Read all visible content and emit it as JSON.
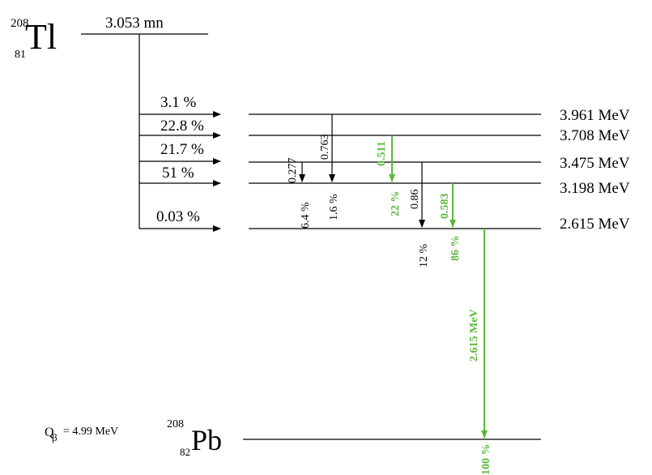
{
  "parent": {
    "mass": "208",
    "atomic_number": "81",
    "symbol": "Tl",
    "half_life": "3.053 mn"
  },
  "daughter": {
    "mass": "208",
    "atomic_number": "82",
    "symbol": "Pb"
  },
  "q_value": {
    "prefix": "Q",
    "subscript": "β",
    "value": "= 4.99 MeV"
  },
  "levels": [
    {
      "energy": "3.961 MeV"
    },
    {
      "energy": "3.708 MeV"
    },
    {
      "energy": "3.475 MeV"
    },
    {
      "energy": "3.198 MeV"
    },
    {
      "energy": "2.615 MeV"
    }
  ],
  "beta_branches": [
    {
      "intensity": "3.1 %"
    },
    {
      "intensity": "22.8 %"
    },
    {
      "intensity": "21.7 %"
    },
    {
      "intensity": "51 %"
    },
    {
      "intensity": "0.03 %"
    }
  ],
  "gammas": [
    {
      "energy": "0.277",
      "intensity": "6.4 %",
      "color": "#000000"
    },
    {
      "energy": "0.763",
      "intensity": "1.6 %",
      "color": "#000000"
    },
    {
      "energy": "0.511",
      "intensity": "22 %",
      "color": "#5cb83a"
    },
    {
      "energy": "0.86",
      "intensity": "12 %",
      "color": "#000000"
    },
    {
      "energy": "0.583",
      "intensity": "86 %",
      "color": "#5cb83a"
    },
    {
      "energy": "2.615 MeV",
      "intensity": "100 %",
      "color": "#5cb83a"
    }
  ]
}
